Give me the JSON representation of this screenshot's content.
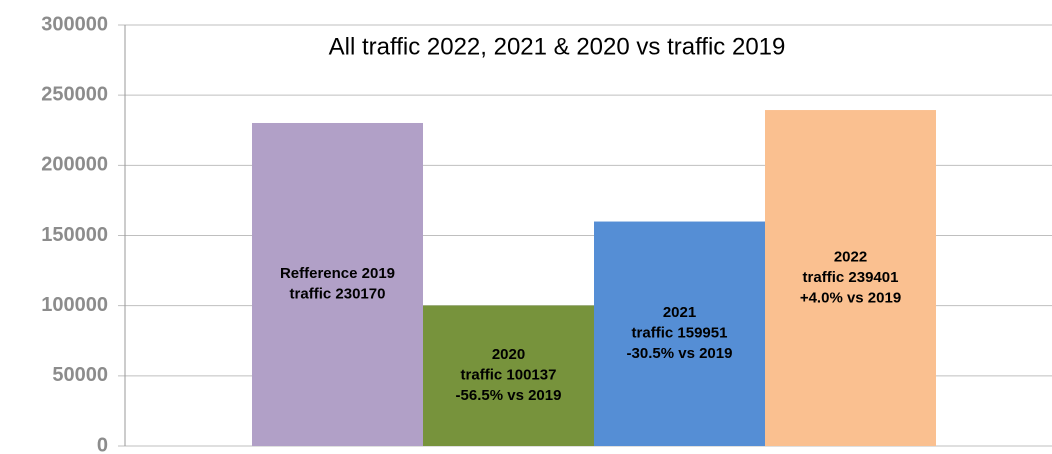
{
  "chart_data": {
    "type": "bar",
    "title": "All traffic 2022, 2021 & 2020 vs traffic 2019",
    "categories": [
      null,
      null,
      null,
      null
    ],
    "values": [
      230170,
      100137,
      159951,
      239401
    ],
    "value_labels": [
      [
        "Refference 2019",
        "traffic 230170"
      ],
      [
        "2020",
        "traffic 100137",
        "-56.5% vs 2019"
      ],
      [
        "2021",
        "traffic 159951",
        "-30.5% vs 2019"
      ],
      [
        "2022",
        "traffic 239401",
        "+4.0% vs 2019"
      ]
    ],
    "colors": [
      "#b1a0c7",
      "#77933c",
      "#558ed5",
      "#fac090"
    ],
    "ylim": [
      0,
      300000
    ],
    "yticks": [
      0,
      50000,
      100000,
      150000,
      200000,
      250000,
      300000
    ],
    "grid": true
  }
}
